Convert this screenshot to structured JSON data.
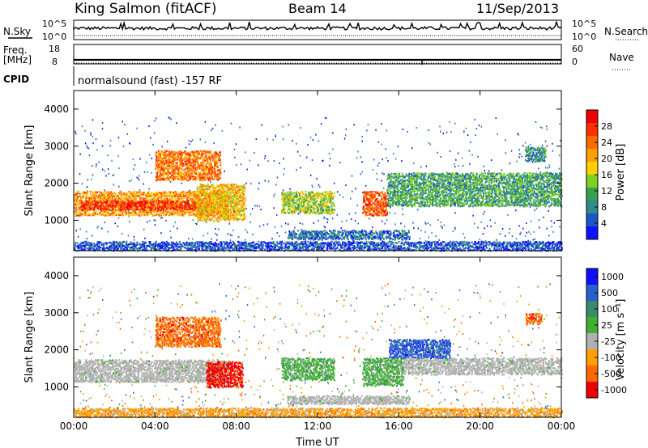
{
  "header": {
    "station": "King Salmon (fitACF)",
    "beam": "Beam 14",
    "date": "11/Sep/2013"
  },
  "status_panels": {
    "nsky_label": "N.Sky",
    "freq_label_1": "Freq.",
    "freq_label_2": "[MHz]",
    "cpid_label": "CPID",
    "nsearch_label": "N.Search",
    "nave_label": "Nave",
    "noise_ticks_left": [
      "10^5",
      "10^0"
    ],
    "noise_ticks_right": [
      "10^5",
      "10^0"
    ],
    "freq_ticks_left": [
      "18",
      "8"
    ],
    "nave_ticks_right": [
      "60",
      "0"
    ],
    "cpid_text": "normalsound (fast) -157 RF"
  },
  "chart_data": [
    {
      "type": "heatmap",
      "title": "",
      "panel": "power",
      "xlabel": "Time UT",
      "ylabel": "Slant Range [km]",
      "x_ticks": [
        "00:00",
        "04:00",
        "08:00",
        "12:00",
        "16:00",
        "20:00",
        "00:00"
      ],
      "y_ticks": [
        "1000",
        "2000",
        "3000",
        "4000"
      ],
      "xlim_hours": [
        0,
        24
      ],
      "ylim_km": [
        180,
        4500
      ],
      "colorbar": {
        "label": "Power [dB]",
        "ticks": [
          "4",
          "8",
          "12",
          "16",
          "20",
          "24",
          "28"
        ],
        "range": [
          0,
          30
        ],
        "colors": [
          "#1010ff",
          "#1a56c8",
          "#2f8a8a",
          "#3aa050",
          "#7fd020",
          "#ffd000",
          "#ffa000",
          "#ff6a00",
          "#ff3000",
          "#ee0000"
        ]
      },
      "regions": [
        {
          "t0": 0.0,
          "t1": 7.5,
          "r0": 1150,
          "r1": 1800,
          "level": 20
        },
        {
          "t0": 0.3,
          "t1": 6.0,
          "r0": 1300,
          "r1": 1550,
          "level": 26
        },
        {
          "t0": 4.0,
          "t1": 7.2,
          "r0": 2100,
          "r1": 2900,
          "level": 22
        },
        {
          "t0": 6.0,
          "t1": 8.4,
          "r0": 1000,
          "r1": 2000,
          "level": 18
        },
        {
          "t0": 10.2,
          "t1": 12.8,
          "r0": 1200,
          "r1": 1800,
          "level": 14
        },
        {
          "t0": 14.2,
          "t1": 15.4,
          "r0": 1150,
          "r1": 1800,
          "level": 24
        },
        {
          "t0": 15.4,
          "t1": 24.0,
          "r0": 1400,
          "r1": 2300,
          "level": 10
        },
        {
          "t0": 22.2,
          "t1": 23.2,
          "r0": 2600,
          "r1": 3000,
          "level": 8
        },
        {
          "t0": 10.5,
          "t1": 16.5,
          "r0": 500,
          "r1": 750,
          "level": 6
        },
        {
          "t0": 0.0,
          "t1": 24.0,
          "r0": 200,
          "r1": 450,
          "level": 4
        }
      ]
    },
    {
      "type": "heatmap",
      "title": "",
      "panel": "velocity",
      "xlabel": "Time UT",
      "ylabel": "Slant Range [km]",
      "x_ticks": [
        "00:00",
        "04:00",
        "08:00",
        "12:00",
        "16:00",
        "20:00",
        "00:00"
      ],
      "y_ticks": [
        "1000",
        "2000",
        "3000",
        "4000"
      ],
      "xlim_hours": [
        0,
        24
      ],
      "ylim_km": [
        180,
        4500
      ],
      "colorbar": {
        "label": "Velocity [m s⁻¹]",
        "ticks": [
          "1000",
          "500",
          "100",
          "25",
          "-25",
          "-100",
          "-500",
          "-1000"
        ],
        "colors": [
          "#1010ff",
          "#2a5fd0",
          "#3a8a70",
          "#3fb030",
          "#b0b0b0",
          "#ffa000",
          "#ff6a00",
          "#ee0000"
        ]
      },
      "regions": [
        {
          "t0": 0.0,
          "t1": 7.5,
          "r0": 1150,
          "r1": 1750,
          "level": "ground"
        },
        {
          "t0": 4.0,
          "t1": 7.2,
          "r0": 2100,
          "r1": 2900,
          "level": "-500"
        },
        {
          "t0": 6.5,
          "t1": 8.3,
          "r0": 1000,
          "r1": 1700,
          "level": "-1000"
        },
        {
          "t0": 10.2,
          "t1": 12.8,
          "r0": 1200,
          "r1": 1800,
          "level": "100"
        },
        {
          "t0": 14.2,
          "t1": 16.2,
          "r0": 1050,
          "r1": 1800,
          "level": "100"
        },
        {
          "t0": 16.2,
          "t1": 24.0,
          "r0": 1350,
          "r1": 1800,
          "level": "ground"
        },
        {
          "t0": 15.5,
          "t1": 18.5,
          "r0": 1800,
          "r1": 2300,
          "level": "500"
        },
        {
          "t0": 22.2,
          "t1": 23.0,
          "r0": 2700,
          "r1": 3000,
          "level": "-500"
        },
        {
          "t0": 10.5,
          "t1": 16.5,
          "r0": 550,
          "r1": 780,
          "level": "ground"
        },
        {
          "t0": 0.0,
          "t1": 24.0,
          "r0": 200,
          "r1": 450,
          "level": "-100"
        }
      ]
    }
  ]
}
